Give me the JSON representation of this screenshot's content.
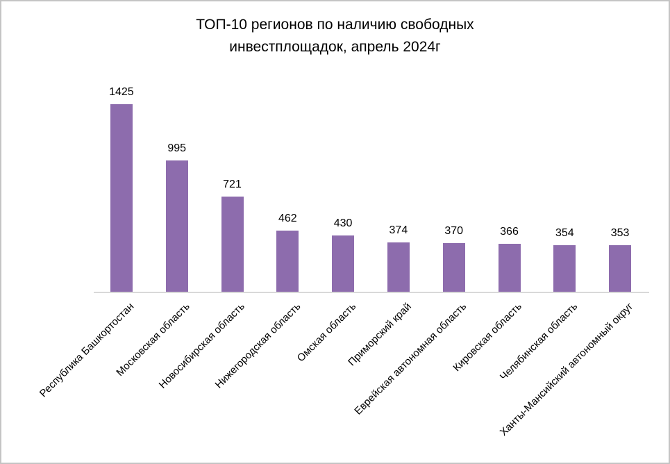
{
  "chart_data": {
    "type": "bar",
    "title": "ТОП-10 регионов по наличию свободных инвестплощадок, апрель 2024г",
    "title_lines": [
      "ТОП-10 регионов по наличию свободных",
      "инвестплощадок, апрель 2024г"
    ],
    "categories": [
      "Республика Башкортостан",
      "Московская область",
      "Новосибирская область",
      "Нижегородская область",
      "Омская область",
      "Приморский край",
      "Еврейская автономная область",
      "Кировская область",
      "Челябинская область",
      "Ханты-Мансийский автономный округ"
    ],
    "values": [
      1425,
      995,
      721,
      462,
      430,
      374,
      370,
      366,
      354,
      353
    ],
    "xlabel": "",
    "ylabel": "",
    "ylim": [
      0,
      1425
    ],
    "grid": false,
    "legend": "none",
    "data_labels": true,
    "y_axis_visible": false,
    "x_tick_rotation_deg": 45,
    "bar_color": "#8d6cad",
    "axis_line_color": "#d9d9d9",
    "text_color": "#000000",
    "frame_border_color": "#c4c4c4",
    "background_color": "#ffffff"
  }
}
